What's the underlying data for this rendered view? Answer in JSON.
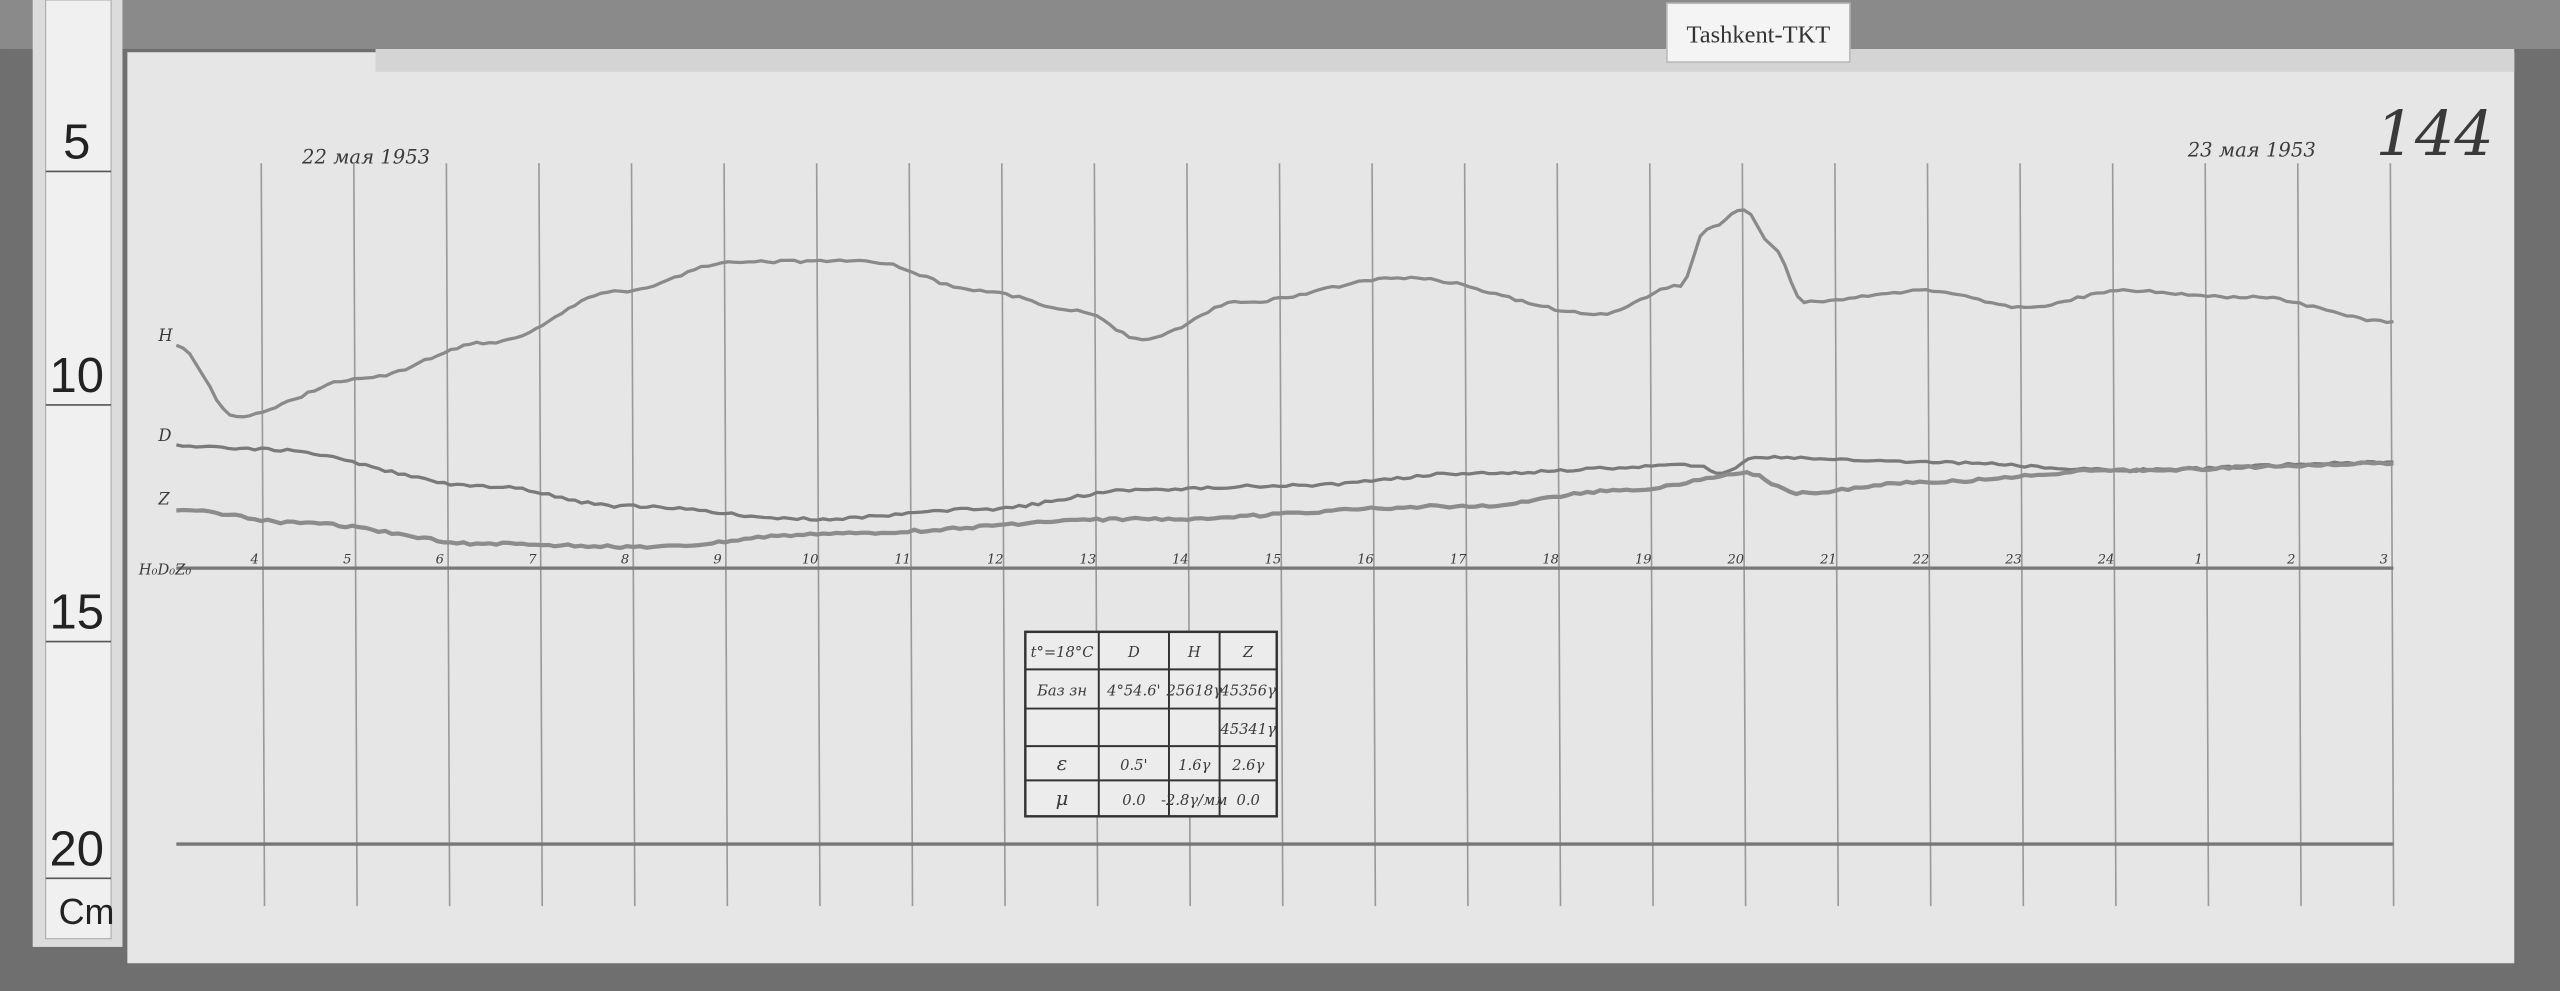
{
  "label_tag": "Tashkent-TKT",
  "sheet_number": "144",
  "ruler": {
    "marks": [
      "5",
      "10",
      "15",
      "20"
    ],
    "unit": "Cm"
  },
  "chart_data": {
    "type": "line",
    "date_start_label": "22 мая 1953",
    "date_end_label": "23 мая 1953",
    "x_ticks": [
      "4",
      "5",
      "6",
      "7",
      "8",
      "9",
      "10",
      "11",
      "12",
      "13",
      "14",
      "15",
      "16",
      "17",
      "18",
      "19",
      "20",
      "21",
      "22",
      "23",
      "24",
      "1",
      "2",
      "3"
    ],
    "baseline_labels": [
      "H₀",
      "D₀",
      "Z₀"
    ],
    "y_unit": "mm deflection above baseline (approx.)",
    "grid": true,
    "series": [
      {
        "name": "H",
        "color": "#8a8a8a",
        "points": [
          [
            "22",
            "03:05",
            47.6
          ],
          [
            "22",
            "03:44",
            32.5
          ],
          [
            "22",
            "05:04",
            40.6
          ],
          [
            "22",
            "06:28",
            48.3
          ],
          [
            "22",
            "07:53",
            59.4
          ],
          [
            "22",
            "09:07",
            65.7
          ],
          [
            "22",
            "10:32",
            65.7
          ],
          [
            "22",
            "11:46",
            59.4
          ],
          [
            "22",
            "12:49",
            55.2
          ],
          [
            "22",
            "13:31",
            49.0
          ],
          [
            "22",
            "14:35",
            57.0
          ],
          [
            "22",
            "16:21",
            62.2
          ],
          [
            "22",
            "18:28",
            54.5
          ],
          [
            "22",
            "19:20",
            60.5
          ],
          [
            "22",
            "19:37",
            72.7
          ],
          [
            "22",
            "20:01",
            76.9
          ],
          [
            "22",
            "20:19",
            69.2
          ],
          [
            "22",
            "20:40",
            57.0
          ],
          [
            "22",
            "21:59",
            59.4
          ],
          [
            "22",
            "23:03",
            55.9
          ],
          [
            "23",
            "00:07",
            59.4
          ],
          [
            "23",
            "01:31",
            58.0
          ],
          [
            "23",
            "03:02",
            52.8
          ]
        ]
      },
      {
        "name": "D",
        "color": "#7a7a7a",
        "points": [
          [
            "22",
            "03:05",
            26.2
          ],
          [
            "22",
            "04:00",
            25.5
          ],
          [
            "22",
            "06:28",
            17.5
          ],
          [
            "22",
            "07:53",
            13.3
          ],
          [
            "22",
            "10:00",
            10.5
          ],
          [
            "22",
            "11:46",
            12.6
          ],
          [
            "22",
            "13:31",
            16.8
          ],
          [
            "22",
            "15:17",
            17.8
          ],
          [
            "22",
            "17:03",
            20.3
          ],
          [
            "22",
            "19:31",
            22.0
          ],
          [
            "22",
            "19:47",
            20.3
          ],
          [
            "22",
            "20:08",
            23.8
          ],
          [
            "22",
            "21:59",
            22.7
          ],
          [
            "23",
            "00:07",
            21.0
          ],
          [
            "23",
            "03:02",
            22.7
          ]
        ]
      },
      {
        "name": "Z",
        "color": "#8c8c8c",
        "points": [
          [
            "22",
            "03:05",
            12.6
          ],
          [
            "22",
            "04:21",
            9.8
          ],
          [
            "22",
            "06:28",
            5.2
          ],
          [
            "22",
            "08:14",
            4.5
          ],
          [
            "22",
            "10:00",
            7.3
          ],
          [
            "22",
            "13:31",
            10.5
          ],
          [
            "22",
            "17:03",
            13.3
          ],
          [
            "22",
            "18:49",
            16.8
          ],
          [
            "22",
            "20:03",
            20.3
          ],
          [
            "22",
            "20:35",
            16.1
          ],
          [
            "22",
            "21:59",
            18.5
          ],
          [
            "23",
            "00:07",
            21.0
          ],
          [
            "23",
            "03:02",
            22.4
          ]
        ]
      }
    ]
  },
  "table": {
    "rows": [
      [
        "t°=18°C",
        "D",
        "H",
        "Z"
      ],
      [
        "Баз зн",
        "4°54.6'",
        "25618γ",
        "45356γ"
      ],
      [
        "",
        "",
        "",
        "45341γ"
      ],
      [
        "ε",
        "0.5'",
        "1.6γ",
        "2.6γ"
      ],
      [
        "μ",
        "0.0",
        "-2.8γ/мм",
        "0.0"
      ]
    ]
  }
}
